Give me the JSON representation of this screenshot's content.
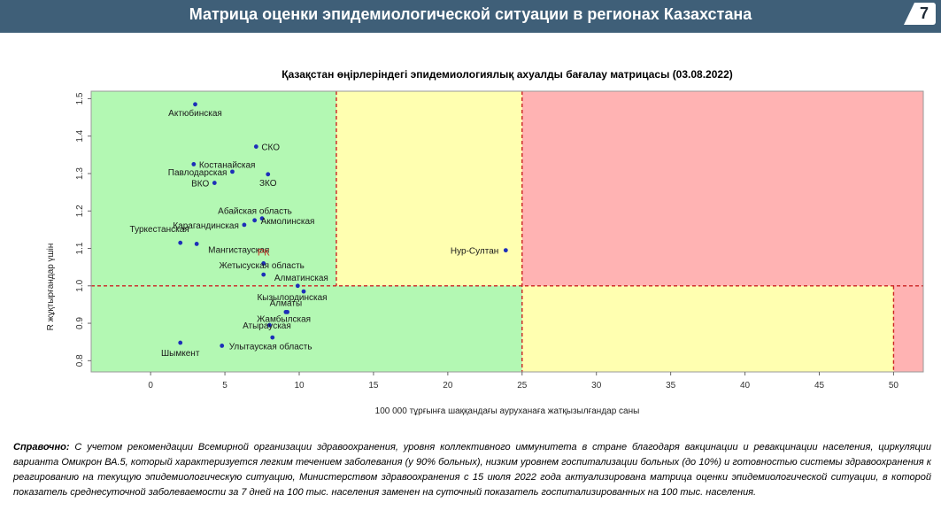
{
  "header": {
    "title": "Матрица оценки эпидемиологической ситуации в регионах Казахстана",
    "page_number": "7"
  },
  "chart_data": {
    "type": "scatter",
    "title": "Қазақстан өңірлеріндегі эпидемиологиялық ахуалды бағалау матрицасы  (03.08.2022)",
    "xlabel": "100 000 тұрғынға шаққандағы ауруханаға жатқызылғандар саны",
    "ylabel": "R жұқтырғандар үшін",
    "xlim": [
      -4,
      52
    ],
    "ylim": [
      0.77,
      1.52
    ],
    "x_ticks": [
      "0",
      "5",
      "10",
      "15",
      "20",
      "25",
      "30",
      "35",
      "40",
      "45",
      "50"
    ],
    "y_ticks": [
      "0.8",
      "0.9",
      "1.0",
      "1.1",
      "1.2",
      "1.3",
      "1.4",
      "1.5"
    ],
    "thresholds": {
      "x_low": 12.5,
      "x_high": 25,
      "x_max": 50,
      "y": 1.0
    },
    "zone_colors": {
      "green": "#b3f8b3",
      "yellow": "#ffffb0",
      "red": "#ffb3b3",
      "point": "#1d2fb8",
      "rk_label": "#c0392b",
      "threshold_line": "#cc2222"
    },
    "points": [
      {
        "label": "Актюбинская",
        "x": 3.0,
        "y": 1.485
      },
      {
        "label": "СКО",
        "x": 7.1,
        "y": 1.372
      },
      {
        "label": "Костанайская",
        "x": 2.9,
        "y": 1.325
      },
      {
        "label": "Павлодарская",
        "x": 5.5,
        "y": 1.305
      },
      {
        "label": "ЗКО",
        "x": 7.9,
        "y": 1.298
      },
      {
        "label": "ВКО",
        "x": 4.3,
        "y": 1.275
      },
      {
        "label": "Абайская область",
        "x": 7.5,
        "y": 1.18
      },
      {
        "label": "Акмолинская",
        "x": 7.0,
        "y": 1.175
      },
      {
        "label": "Карагандинская",
        "x": 6.3,
        "y": 1.163
      },
      {
        "label": "Туркестанская",
        "x": 2.0,
        "y": 1.115
      },
      {
        "label": "Мангистауская",
        "x": 3.1,
        "y": 1.112
      },
      {
        "label": "Нур-Султан",
        "x": 23.9,
        "y": 1.095
      },
      {
        "label": "РК",
        "x": 7.6,
        "y": 1.06
      },
      {
        "label": "Жетысуская область",
        "x": 7.6,
        "y": 1.03
      },
      {
        "label": "Алматинская",
        "x": 9.9,
        "y": 1.0
      },
      {
        "label": "Кызылординская",
        "x": 10.3,
        "y": 0.985
      },
      {
        "label": "Алматы",
        "x": 9.1,
        "y": 0.93
      },
      {
        "label": "Жамбылская",
        "x": 9.2,
        "y": 0.93
      },
      {
        "label": "Атырауская",
        "x": 8.0,
        "y": 0.895
      },
      {
        "label": "Шымкент",
        "x": 2.0,
        "y": 0.848
      },
      {
        "label": "Улытауская область",
        "x": 4.8,
        "y": 0.84
      },
      {
        "label": "",
        "x": 8.2,
        "y": 0.862
      }
    ]
  },
  "note": {
    "lead": "Справочно:",
    "text": " С учетом рекомендации Всемирной организации здравоохранения, уровня коллективного иммунитета в стране благодаря вакцинации и ревакцинации населения, циркуляции варианта Омикрон ВА.5, который характеризуется легким течением заболевания (у 90% больных), низким уровнем госпитализации больных (до 10%) и готовностью системы здравоохранения к реагированию на текущую эпидемиологическую ситуацию, Министерством здравоохранения с 15 июля 2022 года актуализирована матрица оценки эпидемиологической ситуации, в которой показатель  среднесуточной заболеваемости за 7 дней на 100 тыс. населения заменен на  суточный показатель госпитализированных на 100 тыс. населения."
  }
}
